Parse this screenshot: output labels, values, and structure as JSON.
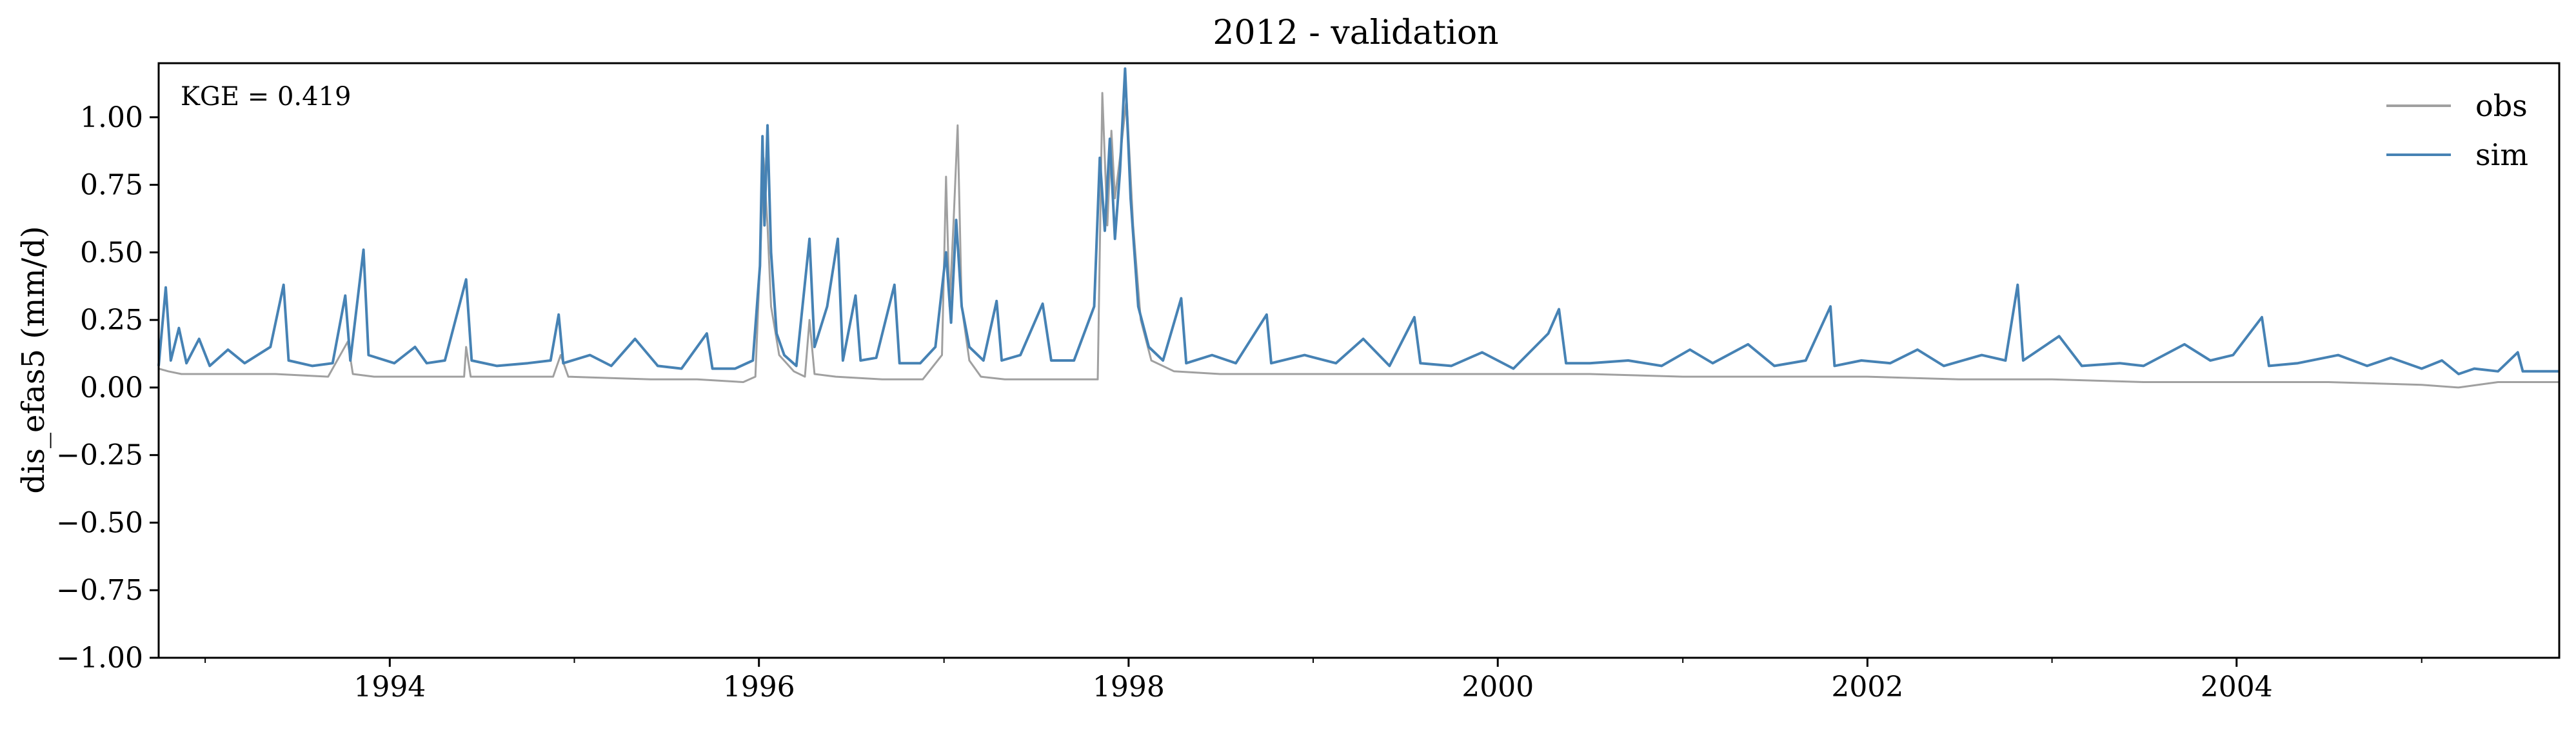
{
  "chart_data": {
    "type": "line",
    "title": "2012 - validation",
    "xlabel": "",
    "ylabel": "dis_efas5 (mm/d)",
    "annotation": "KGE = 0.419",
    "xlim": [
      "1992-10-01",
      "2005-09-30"
    ],
    "ylim": [
      -1.0,
      1.2
    ],
    "y_ticks": [
      -1.0,
      -0.75,
      -0.5,
      -0.25,
      0.0,
      0.25,
      0.5,
      0.75,
      1.0
    ],
    "y_tick_labels": [
      "−1.00",
      "−0.75",
      "−0.50",
      "−0.25",
      "0.00",
      "0.25",
      "0.50",
      "0.75",
      "1.00"
    ],
    "x_ticks": [
      "1994-01-01",
      "1996-01-01",
      "1998-01-01",
      "2000-01-01",
      "2002-01-01",
      "2004-01-01"
    ],
    "x_tick_labels": [
      "1994",
      "1996",
      "1998",
      "2000",
      "2002",
      "2004"
    ],
    "x_minor_ticks": [
      "1993-01-01",
      "1995-01-01",
      "1997-01-01",
      "1999-01-01",
      "2001-01-01",
      "2003-01-01",
      "2005-01-01"
    ],
    "legend": {
      "position": "top-right"
    },
    "grid": false,
    "series": [
      {
        "name": "obs",
        "color": "#a0a0a0",
        "points": [
          [
            "1992-10-01",
            0.07
          ],
          [
            "1992-10-20",
            0.06
          ],
          [
            "1992-11-15",
            0.05
          ],
          [
            "1993-01-10",
            0.05
          ],
          [
            "1993-03-01",
            0.05
          ],
          [
            "1993-05-20",
            0.05
          ],
          [
            "1993-09-01",
            0.04
          ],
          [
            "1993-10-10",
            0.17
          ],
          [
            "1993-10-20",
            0.05
          ],
          [
            "1993-12-01",
            0.04
          ],
          [
            "1994-05-28",
            0.04
          ],
          [
            "1994-06-01",
            0.15
          ],
          [
            "1994-06-10",
            0.04
          ],
          [
            "1994-11-20",
            0.04
          ],
          [
            "1994-12-05",
            0.12
          ],
          [
            "1994-12-20",
            0.04
          ],
          [
            "1995-06-01",
            0.03
          ],
          [
            "1995-09-01",
            0.03
          ],
          [
            "1995-12-01",
            0.02
          ],
          [
            "1995-12-25",
            0.04
          ],
          [
            "1996-01-05",
            0.55
          ],
          [
            "1996-01-10",
            0.85
          ],
          [
            "1996-01-18",
            0.6
          ],
          [
            "1996-01-25",
            0.3
          ],
          [
            "1996-02-10",
            0.12
          ],
          [
            "1996-03-10",
            0.06
          ],
          [
            "1996-04-01",
            0.04
          ],
          [
            "1996-04-10",
            0.25
          ],
          [
            "1996-04-20",
            0.05
          ],
          [
            "1996-06-01",
            0.04
          ],
          [
            "1996-09-01",
            0.03
          ],
          [
            "1996-11-20",
            0.03
          ],
          [
            "1996-12-28",
            0.12
          ],
          [
            "1997-01-05",
            0.78
          ],
          [
            "1997-01-12",
            0.3
          ],
          [
            "1997-01-20",
            0.62
          ],
          [
            "1997-01-28",
            0.97
          ],
          [
            "1997-02-05",
            0.3
          ],
          [
            "1997-02-20",
            0.1
          ],
          [
            "1997-03-15",
            0.04
          ],
          [
            "1997-05-01",
            0.03
          ],
          [
            "1997-10-01",
            0.03
          ],
          [
            "1997-11-01",
            0.03
          ],
          [
            "1997-11-10",
            1.09
          ],
          [
            "1997-11-20",
            0.6
          ],
          [
            "1997-11-28",
            0.95
          ],
          [
            "1997-12-05",
            0.7
          ],
          [
            "1997-12-15",
            0.85
          ],
          [
            "1997-12-28",
            1.07
          ],
          [
            "1998-01-10",
            0.6
          ],
          [
            "1998-01-25",
            0.25
          ],
          [
            "1998-02-15",
            0.1
          ],
          [
            "1998-04-01",
            0.06
          ],
          [
            "1998-07-01",
            0.05
          ],
          [
            "1999-01-01",
            0.05
          ],
          [
            "1999-07-01",
            0.05
          ],
          [
            "2000-01-01",
            0.05
          ],
          [
            "2000-07-01",
            0.05
          ],
          [
            "2001-01-01",
            0.04
          ],
          [
            "2001-07-01",
            0.04
          ],
          [
            "2002-01-01",
            0.04
          ],
          [
            "2002-07-01",
            0.03
          ],
          [
            "2003-01-01",
            0.03
          ],
          [
            "2003-07-01",
            0.02
          ],
          [
            "2004-01-01",
            0.02
          ],
          [
            "2004-07-01",
            0.02
          ],
          [
            "2005-01-01",
            0.01
          ],
          [
            "2005-03-15",
            0.0
          ],
          [
            "2005-06-01",
            0.02
          ],
          [
            "2005-09-30",
            0.02
          ]
        ]
      },
      {
        "name": "sim",
        "color": "#4682b4",
        "points": [
          [
            "1992-10-01",
            0.08
          ],
          [
            "1992-10-15",
            0.37
          ],
          [
            "1992-10-25",
            0.1
          ],
          [
            "1992-11-10",
            0.22
          ],
          [
            "1992-11-25",
            0.09
          ],
          [
            "1992-12-20",
            0.18
          ],
          [
            "1993-01-10",
            0.08
          ],
          [
            "1993-02-15",
            0.14
          ],
          [
            "1993-03-20",
            0.09
          ],
          [
            "1993-05-10",
            0.15
          ],
          [
            "1993-06-05",
            0.38
          ],
          [
            "1993-06-15",
            0.1
          ],
          [
            "1993-08-01",
            0.08
          ],
          [
            "1993-09-10",
            0.09
          ],
          [
            "1993-10-05",
            0.34
          ],
          [
            "1993-10-15",
            0.1
          ],
          [
            "1993-11-10",
            0.51
          ],
          [
            "1993-11-20",
            0.12
          ],
          [
            "1994-01-10",
            0.09
          ],
          [
            "1994-02-20",
            0.15
          ],
          [
            "1994-03-15",
            0.09
          ],
          [
            "1994-04-20",
            0.1
          ],
          [
            "1994-06-01",
            0.4
          ],
          [
            "1994-06-12",
            0.1
          ],
          [
            "1994-08-01",
            0.08
          ],
          [
            "1994-10-01",
            0.09
          ],
          [
            "1994-11-15",
            0.1
          ],
          [
            "1994-12-01",
            0.27
          ],
          [
            "1994-12-10",
            0.09
          ],
          [
            "1995-02-01",
            0.12
          ],
          [
            "1995-03-15",
            0.08
          ],
          [
            "1995-05-01",
            0.18
          ],
          [
            "1995-06-15",
            0.08
          ],
          [
            "1995-08-01",
            0.07
          ],
          [
            "1995-09-20",
            0.2
          ],
          [
            "1995-10-01",
            0.07
          ],
          [
            "1995-11-15",
            0.07
          ],
          [
            "1995-12-20",
            0.1
          ],
          [
            "1996-01-03",
            0.45
          ],
          [
            "1996-01-08",
            0.93
          ],
          [
            "1996-01-12",
            0.6
          ],
          [
            "1996-01-18",
            0.97
          ],
          [
            "1996-01-25",
            0.5
          ],
          [
            "1996-02-05",
            0.2
          ],
          [
            "1996-02-20",
            0.12
          ],
          [
            "1996-03-15",
            0.08
          ],
          [
            "1996-04-10",
            0.55
          ],
          [
            "1996-04-20",
            0.15
          ],
          [
            "1996-05-15",
            0.3
          ],
          [
            "1996-06-05",
            0.55
          ],
          [
            "1996-06-15",
            0.1
          ],
          [
            "1996-07-10",
            0.34
          ],
          [
            "1996-07-20",
            0.1
          ],
          [
            "1996-08-20",
            0.11
          ],
          [
            "1996-09-25",
            0.38
          ],
          [
            "1996-10-05",
            0.09
          ],
          [
            "1996-11-15",
            0.09
          ],
          [
            "1996-12-15",
            0.15
          ],
          [
            "1997-01-05",
            0.5
          ],
          [
            "1997-01-15",
            0.24
          ],
          [
            "1997-01-25",
            0.62
          ],
          [
            "1997-02-05",
            0.3
          ],
          [
            "1997-02-20",
            0.15
          ],
          [
            "1997-03-20",
            0.1
          ],
          [
            "1997-04-15",
            0.32
          ],
          [
            "1997-04-25",
            0.1
          ],
          [
            "1997-06-01",
            0.12
          ],
          [
            "1997-07-15",
            0.31
          ],
          [
            "1997-08-01",
            0.1
          ],
          [
            "1997-09-15",
            0.1
          ],
          [
            "1997-10-25",
            0.3
          ],
          [
            "1997-11-05",
            0.85
          ],
          [
            "1997-11-15",
            0.58
          ],
          [
            "1997-11-25",
            0.92
          ],
          [
            "1997-12-05",
            0.55
          ],
          [
            "1997-12-15",
            0.8
          ],
          [
            "1997-12-25",
            1.18
          ],
          [
            "1998-01-05",
            0.7
          ],
          [
            "1998-01-20",
            0.3
          ],
          [
            "1998-02-10",
            0.15
          ],
          [
            "1998-03-10",
            0.1
          ],
          [
            "1998-04-15",
            0.33
          ],
          [
            "1998-04-25",
            0.09
          ],
          [
            "1998-06-15",
            0.12
          ],
          [
            "1998-08-01",
            0.09
          ],
          [
            "1998-10-01",
            0.27
          ],
          [
            "1998-10-10",
            0.09
          ],
          [
            "1998-12-15",
            0.12
          ],
          [
            "1999-02-15",
            0.09
          ],
          [
            "1999-04-10",
            0.18
          ],
          [
            "1999-06-01",
            0.08
          ],
          [
            "1999-07-20",
            0.26
          ],
          [
            "1999-08-01",
            0.09
          ],
          [
            "1999-10-01",
            0.08
          ],
          [
            "1999-12-01",
            0.13
          ],
          [
            "2000-02-01",
            0.07
          ],
          [
            "2000-04-10",
            0.2
          ],
          [
            "2000-05-01",
            0.29
          ],
          [
            "2000-05-15",
            0.09
          ],
          [
            "2000-07-01",
            0.09
          ],
          [
            "2000-09-15",
            0.1
          ],
          [
            "2000-11-20",
            0.08
          ],
          [
            "2001-01-15",
            0.14
          ],
          [
            "2001-03-01",
            0.09
          ],
          [
            "2001-05-10",
            0.16
          ],
          [
            "2001-07-01",
            0.08
          ],
          [
            "2001-09-01",
            0.1
          ],
          [
            "2001-10-20",
            0.3
          ],
          [
            "2001-10-28",
            0.08
          ],
          [
            "2001-12-20",
            0.1
          ],
          [
            "2002-02-15",
            0.09
          ],
          [
            "2002-04-10",
            0.14
          ],
          [
            "2002-06-01",
            0.08
          ],
          [
            "2002-08-15",
            0.12
          ],
          [
            "2002-10-01",
            0.1
          ],
          [
            "2002-10-25",
            0.38
          ],
          [
            "2002-11-05",
            0.1
          ],
          [
            "2003-01-15",
            0.19
          ],
          [
            "2003-03-01",
            0.08
          ],
          [
            "2003-05-15",
            0.09
          ],
          [
            "2003-07-01",
            0.08
          ],
          [
            "2003-09-20",
            0.16
          ],
          [
            "2003-11-10",
            0.1
          ],
          [
            "2003-12-25",
            0.12
          ],
          [
            "2004-02-20",
            0.26
          ],
          [
            "2004-03-05",
            0.08
          ],
          [
            "2004-05-01",
            0.09
          ],
          [
            "2004-07-20",
            0.12
          ],
          [
            "2004-09-15",
            0.08
          ],
          [
            "2004-11-01",
            0.11
          ],
          [
            "2005-01-01",
            0.07
          ],
          [
            "2005-02-10",
            0.1
          ],
          [
            "2005-03-15",
            0.05
          ],
          [
            "2005-04-15",
            0.07
          ],
          [
            "2005-06-01",
            0.06
          ],
          [
            "2005-07-10",
            0.13
          ],
          [
            "2005-07-20",
            0.06
          ],
          [
            "2005-09-30",
            0.06
          ]
        ]
      }
    ]
  }
}
